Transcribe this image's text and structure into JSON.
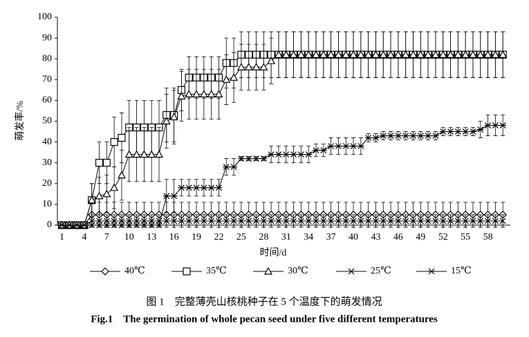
{
  "chart_data": {
    "type": "line",
    "x_label": "时间/d",
    "y_label": "萌发率/%",
    "caption_cn": "图 1　完整薄壳山核桃种子在 5 个温度下的萌发情况",
    "caption_en": "Fig.1　The germination of whole pecan seed under five different temperatures",
    "x": [
      1,
      2,
      3,
      4,
      5,
      6,
      7,
      8,
      9,
      10,
      11,
      12,
      13,
      14,
      15,
      16,
      17,
      18,
      19,
      20,
      21,
      22,
      23,
      24,
      25,
      26,
      27,
      28,
      29,
      30,
      31,
      32,
      33,
      34,
      35,
      36,
      37,
      38,
      39,
      40,
      41,
      42,
      43,
      44,
      45,
      46,
      47,
      48,
      49,
      50,
      51,
      52,
      53,
      54,
      55,
      56,
      57,
      58,
      59,
      60
    ],
    "xlim": [
      0.4,
      61
    ],
    "xticks": [
      1,
      4,
      7,
      10,
      13,
      16,
      19,
      22,
      25,
      28,
      31,
      34,
      37,
      40,
      43,
      46,
      49,
      52,
      55,
      58
    ],
    "ylim": [
      0,
      100
    ],
    "yticks": [
      0,
      10,
      20,
      30,
      40,
      50,
      60,
      70,
      80,
      90,
      100
    ],
    "series": [
      {
        "name": "40℃",
        "color": "#000000",
        "marker": "diamond",
        "values": [
          0,
          0,
          0,
          0,
          5,
          5,
          5,
          5,
          5,
          5,
          5,
          5,
          5,
          5,
          5,
          5,
          5,
          5,
          5,
          5,
          5,
          5,
          5,
          5,
          5,
          5,
          5,
          5,
          5,
          5,
          5,
          5,
          5,
          5,
          5,
          5,
          5,
          5,
          5,
          5,
          5,
          5,
          5,
          5,
          5,
          5,
          5,
          5,
          5,
          5,
          5,
          5,
          5,
          5,
          5,
          5,
          5,
          5,
          5,
          5
        ],
        "errors": [
          0,
          0,
          0,
          0,
          6,
          6,
          6,
          6,
          6,
          6,
          6,
          6,
          6,
          6,
          6,
          6,
          6,
          6,
          6,
          6,
          6,
          6,
          6,
          6,
          6,
          6,
          6,
          6,
          6,
          6,
          6,
          6,
          6,
          6,
          6,
          6,
          6,
          6,
          6,
          6,
          6,
          6,
          6,
          6,
          6,
          6,
          6,
          6,
          6,
          6,
          6,
          6,
          6,
          6,
          6,
          6,
          6,
          6,
          6,
          6
        ]
      },
      {
        "name": "35℃",
        "color": "#000000",
        "marker": "square",
        "values": [
          0,
          0,
          0,
          0,
          12,
          30,
          30,
          40,
          42,
          47,
          47,
          47,
          47,
          47,
          53,
          53,
          65,
          71,
          71,
          71,
          71,
          71,
          78,
          78,
          82,
          82,
          82,
          82,
          82,
          82,
          82,
          82,
          82,
          82,
          82,
          82,
          82,
          82,
          82,
          82,
          82,
          82,
          82,
          82,
          82,
          82,
          82,
          82,
          82,
          82,
          82,
          82,
          82,
          82,
          82,
          82,
          82,
          82,
          82,
          82
        ],
        "errors": [
          0,
          0,
          0,
          0,
          8,
          10,
          10,
          12,
          12,
          13,
          13,
          13,
          13,
          13,
          13,
          13,
          10,
          10,
          10,
          10,
          10,
          10,
          12,
          12,
          11,
          11,
          11,
          11,
          11,
          11,
          11,
          11,
          11,
          11,
          11,
          11,
          11,
          11,
          11,
          11,
          11,
          11,
          11,
          11,
          11,
          11,
          11,
          11,
          11,
          11,
          11,
          11,
          11,
          11,
          11,
          11,
          11,
          11,
          11,
          11
        ]
      },
      {
        "name": "30℃",
        "color": "#000000",
        "marker": "triangle",
        "values": [
          0,
          0,
          0,
          0,
          12,
          14,
          15,
          18,
          24,
          34,
          34,
          34,
          34,
          34,
          50,
          52,
          62,
          63,
          63,
          63,
          63,
          63,
          70,
          71,
          76,
          76,
          76,
          76,
          79,
          82,
          82,
          82,
          82,
          82,
          82,
          82,
          82,
          82,
          82,
          82,
          82,
          82,
          82,
          82,
          82,
          82,
          82,
          82,
          82,
          82,
          82,
          82,
          82,
          82,
          82,
          82,
          82,
          82,
          82,
          82
        ],
        "errors": [
          0,
          0,
          0,
          0,
          8,
          9,
          9,
          10,
          12,
          13,
          13,
          13,
          13,
          13,
          13,
          13,
          12,
          12,
          12,
          12,
          12,
          12,
          12,
          12,
          11,
          11,
          11,
          11,
          11,
          11,
          11,
          11,
          11,
          11,
          11,
          11,
          11,
          11,
          11,
          11,
          11,
          11,
          11,
          11,
          11,
          11,
          11,
          11,
          11,
          11,
          11,
          11,
          11,
          11,
          11,
          11,
          11,
          11,
          11,
          11
        ]
      },
      {
        "name": "25℃",
        "color": "#000000",
        "marker": "x",
        "values": [
          0,
          0,
          0,
          0,
          2,
          2,
          2,
          2,
          2,
          2,
          2,
          2,
          2,
          2,
          2,
          2,
          2,
          2,
          2,
          2,
          2,
          2,
          2,
          2,
          2,
          2,
          2,
          2,
          2,
          2,
          2,
          2,
          2,
          2,
          2,
          2,
          2,
          2,
          2,
          2,
          2,
          2,
          2,
          2,
          2,
          2,
          2,
          2,
          2,
          2,
          2,
          2,
          2,
          2,
          2,
          2,
          2,
          2,
          2,
          2
        ],
        "errors": [
          0,
          0,
          0,
          0,
          3,
          3,
          3,
          3,
          3,
          3,
          3,
          3,
          3,
          3,
          3,
          3,
          3,
          3,
          3,
          3,
          3,
          3,
          3,
          3,
          3,
          3,
          3,
          3,
          3,
          3,
          3,
          3,
          3,
          3,
          3,
          3,
          3,
          3,
          3,
          3,
          3,
          3,
          3,
          3,
          3,
          3,
          3,
          3,
          3,
          3,
          3,
          3,
          3,
          3,
          3,
          3,
          3,
          3,
          3,
          3
        ]
      },
      {
        "name": "15℃",
        "color": "#000000",
        "marker": "star",
        "values": [
          0,
          0,
          0,
          0,
          0,
          0,
          0,
          0,
          0,
          0,
          0,
          0,
          0,
          0,
          14,
          14,
          18,
          18,
          18,
          18,
          18,
          18,
          28,
          28,
          32,
          32,
          32,
          32,
          34,
          34,
          34,
          34,
          34,
          34,
          36,
          36,
          38,
          38,
          38,
          38,
          38,
          42,
          42,
          43,
          43,
          43,
          43,
          43,
          43,
          43,
          43,
          45,
          45,
          45,
          45,
          45,
          46,
          48,
          48,
          48
        ],
        "errors": [
          0,
          0,
          0,
          0,
          0,
          0,
          0,
          0,
          0,
          0,
          0,
          0,
          0,
          0,
          8,
          8,
          4,
          4,
          4,
          4,
          4,
          4,
          4,
          4,
          1,
          1,
          1,
          1,
          4,
          4,
          4,
          4,
          4,
          4,
          3,
          3,
          4,
          4,
          4,
          4,
          4,
          2,
          2,
          2,
          2,
          2,
          2,
          2,
          2,
          2,
          2,
          2,
          2,
          2,
          2,
          2,
          4,
          5,
          5,
          5
        ]
      }
    ]
  }
}
